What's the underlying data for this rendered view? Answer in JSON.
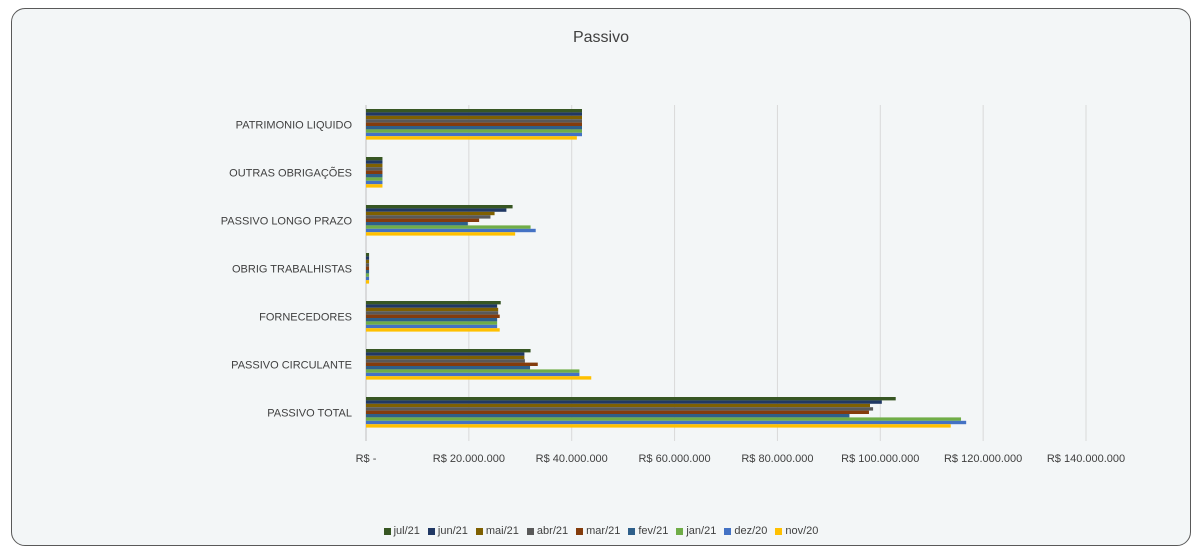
{
  "chart_data": {
    "type": "bar",
    "orientation": "horizontal",
    "title": "Passivo",
    "categories": [
      "PATRIMONIO LIQUIDO",
      "OUTRAS OBRIGAÇÕES",
      "PASSIVO LONGO PRAZO",
      "OBRIG TRABALHISTAS",
      "FORNECEDORES",
      "PASSIVO CIRCULANTE",
      "PASSIVO TOTAL"
    ],
    "xlim": [
      0,
      140000000
    ],
    "x_ticks": [
      0,
      20000000,
      40000000,
      60000000,
      80000000,
      100000000,
      120000000,
      140000000
    ],
    "x_tick_labels": [
      "R$ -",
      "R$ 20.000.000",
      "R$ 40.000.000",
      "R$ 60.000.000",
      "R$ 80.000.000",
      "R$ 100.000.000",
      "R$ 120.000.000",
      "R$ 140.000.000"
    ],
    "grid": true,
    "legend_position": "bottom",
    "series": [
      {
        "name": "jul/21",
        "color": "#375623",
        "values": [
          42000000,
          3200000,
          28500000,
          600000,
          26200000,
          32000000,
          103000000
        ]
      },
      {
        "name": "jun/21",
        "color": "#203864",
        "values": [
          42000000,
          3200000,
          27300000,
          600000,
          25500000,
          30800000,
          100300000
        ]
      },
      {
        "name": "mai/21",
        "color": "#7f6000",
        "values": [
          42000000,
          3200000,
          25000000,
          600000,
          25700000,
          30800000,
          98000000
        ]
      },
      {
        "name": "abr/21",
        "color": "#595959",
        "values": [
          42000000,
          3200000,
          24200000,
          600000,
          25700000,
          30900000,
          98600000
        ]
      },
      {
        "name": "mar/21",
        "color": "#843c0c",
        "values": [
          42000000,
          3200000,
          22000000,
          600000,
          26000000,
          33400000,
          97800000
        ]
      },
      {
        "name": "fev/21",
        "color": "#2e5f8a",
        "values": [
          42000000,
          3200000,
          19800000,
          600000,
          25500000,
          31900000,
          94000000
        ]
      },
      {
        "name": "jan/21",
        "color": "#70ad47",
        "values": [
          42000000,
          3200000,
          32000000,
          600000,
          25500000,
          41500000,
          115700000
        ]
      },
      {
        "name": "dez/20",
        "color": "#4472c4",
        "values": [
          42000000,
          3200000,
          33000000,
          600000,
          25500000,
          41500000,
          116700000
        ]
      },
      {
        "name": "nov/20",
        "color": "#ffc000",
        "values": [
          41000000,
          3200000,
          29000000,
          600000,
          26000000,
          43800000,
          113700000
        ]
      }
    ]
  }
}
